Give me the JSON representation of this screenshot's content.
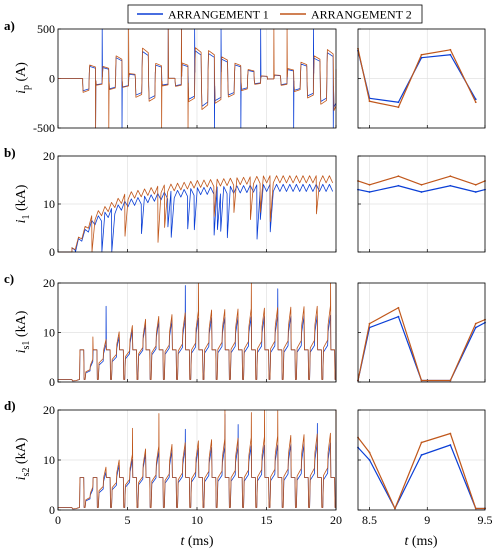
{
  "legend": {
    "items": [
      {
        "label": "ARRANGEMENT 1",
        "color": "#0b3fd6"
      },
      {
        "label": "ARRANGEMENT 2",
        "color": "#c0571b"
      }
    ]
  },
  "time_axis": {
    "xlabel_italic": "t",
    "xlabel_units": "(ms)",
    "main_ticks": [
      0,
      5,
      10,
      15,
      20
    ],
    "main_xlim": [
      0,
      20
    ],
    "zoom_ticks": [
      8.5,
      9,
      9.5
    ],
    "zoom_xlim": [
      8.4,
      9.5
    ]
  },
  "panels": [
    {
      "letter": "a)",
      "ylabel_base": "i",
      "ylabel_sub": "p",
      "ylabel_units": "(A)",
      "ylim": [
        -500,
        500
      ],
      "yticks": [
        -500,
        0,
        500
      ]
    },
    {
      "letter": "b)",
      "ylabel_base": "i",
      "ylabel_sub": "1",
      "ylabel_units": "(kA)",
      "ylim": [
        0,
        20
      ],
      "yticks": [
        0,
        10,
        20
      ]
    },
    {
      "letter": "c)",
      "ylabel_base": "i",
      "ylabel_sub": "s1",
      "ylabel_units": "(kA)",
      "ylim": [
        0,
        20
      ],
      "yticks": [
        0,
        10,
        20
      ]
    },
    {
      "letter": "d)",
      "ylabel_base": "i",
      "ylabel_sub": "s2",
      "ylabel_units": "(kA)",
      "ylim": [
        0,
        20
      ],
      "yticks": [
        0,
        10,
        20
      ]
    }
  ],
  "chart_data": [
    {
      "type": "line",
      "panel": "a)",
      "xlim": [
        0,
        20
      ],
      "ylim": [
        -500,
        500
      ],
      "series": [
        {
          "name": "ARRANGEMENT 1",
          "x": [
            0,
            1.3,
            1.8,
            2.3,
            3.0,
            4.0,
            6.0,
            10.0,
            20.0
          ],
          "y": [
            0,
            0,
            130,
            -150,
            200,
            -250,
            280,
            -300,
            300
          ]
        },
        {
          "name": "ARRANGEMENT 2",
          "x": [
            0,
            1.3,
            1.8,
            2.3,
            3.0,
            4.0,
            6.0,
            10.0,
            20.0
          ],
          "y": [
            0,
            0,
            140,
            -160,
            210,
            -260,
            300,
            -320,
            320
          ]
        }
      ]
    },
    {
      "type": "line",
      "panel": "b)",
      "xlim": [
        0,
        20
      ],
      "ylim": [
        0,
        20
      ],
      "series": [
        {
          "name": "ARRANGEMENT 1",
          "x": [
            0,
            1.0,
            2.5,
            5,
            7.5,
            10,
            12.5,
            15,
            20
          ],
          "y": [
            0,
            0,
            6,
            10,
            11.5,
            12.5,
            12.8,
            13.2,
            13.2
          ]
        },
        {
          "name": "ARRANGEMENT 2",
          "x": [
            0,
            1.0,
            2.5,
            5,
            7.5,
            10,
            12.5,
            15,
            20
          ],
          "y": [
            0,
            0,
            7,
            11.5,
            13,
            14,
            14.5,
            15,
            15
          ]
        }
      ]
    },
    {
      "type": "line",
      "panel": "c)",
      "xlim": [
        0,
        20
      ],
      "ylim": [
        0,
        20
      ],
      "series": [
        {
          "name": "ARRANGEMENT 1",
          "x": [
            0,
            1.0,
            3,
            6,
            10,
            20
          ],
          "y": [
            0.5,
            0.5,
            8,
            12,
            13,
            13.5
          ]
        },
        {
          "name": "ARRANGEMENT 2",
          "x": [
            0,
            1.0,
            3,
            6,
            10,
            20
          ],
          "y": [
            0.5,
            0.5,
            9,
            13,
            14.5,
            15.5
          ]
        }
      ]
    },
    {
      "type": "line",
      "panel": "d)",
      "xlim": [
        0,
        20
      ],
      "ylim": [
        0,
        20
      ],
      "series": [
        {
          "name": "ARRANGEMENT 1",
          "x": [
            0,
            1.0,
            3,
            6,
            10,
            20
          ],
          "y": [
            0.5,
            0.5,
            8,
            11.5,
            12.5,
            13.5
          ]
        },
        {
          "name": "ARRANGEMENT 2",
          "x": [
            0,
            1.0,
            3,
            6,
            10,
            20
          ],
          "y": [
            0.5,
            0.5,
            9,
            12.5,
            14,
            15.5
          ]
        }
      ]
    },
    {
      "type": "line",
      "panel": "a) zoom",
      "xlim": [
        8.4,
        9.5
      ],
      "ylim": [
        -500,
        500
      ],
      "series": [
        {
          "name": "ARRANGEMENT 1",
          "x": [
            8.4,
            8.5,
            8.75,
            8.95,
            9.2,
            9.42
          ],
          "y": [
            280,
            -200,
            -240,
            210,
            240,
            -210
          ]
        },
        {
          "name": "ARRANGEMENT 2",
          "x": [
            8.4,
            8.5,
            8.75,
            8.95,
            9.2,
            9.42
          ],
          "y": [
            300,
            -230,
            -290,
            240,
            290,
            -240
          ]
        }
      ]
    },
    {
      "type": "line",
      "panel": "b) zoom",
      "xlim": [
        8.4,
        9.5
      ],
      "ylim": [
        0,
        20
      ],
      "series": [
        {
          "name": "ARRANGEMENT 1",
          "x": [
            8.4,
            8.5,
            8.75,
            8.95,
            9.2,
            9.42,
            9.5
          ],
          "y": [
            13.0,
            12.5,
            13.8,
            12.5,
            13.8,
            12.5,
            13.0
          ]
        },
        {
          "name": "ARRANGEMENT 2",
          "x": [
            8.4,
            8.5,
            8.75,
            8.95,
            9.2,
            9.42,
            9.5
          ],
          "y": [
            14.8,
            14.0,
            15.8,
            14.0,
            15.8,
            14.0,
            14.8
          ]
        }
      ]
    },
    {
      "type": "line",
      "panel": "c) zoom",
      "xlim": [
        8.4,
        9.5
      ],
      "ylim": [
        0,
        20
      ],
      "series": [
        {
          "name": "ARRANGEMENT 1",
          "x": [
            8.4,
            8.5,
            8.75,
            8.95,
            9.2,
            9.42,
            9.5
          ],
          "y": [
            0.3,
            11.0,
            13.2,
            0.3,
            0.3,
            11.0,
            12.0
          ]
        },
        {
          "name": "ARRANGEMENT 2",
          "x": [
            8.4,
            8.5,
            8.75,
            8.95,
            9.2,
            9.42,
            9.5
          ],
          "y": [
            0.3,
            11.8,
            15.0,
            0.3,
            0.3,
            11.8,
            12.6
          ]
        }
      ]
    },
    {
      "type": "line",
      "panel": "d) zoom",
      "xlim": [
        8.4,
        9.5
      ],
      "ylim": [
        0,
        20
      ],
      "series": [
        {
          "name": "ARRANGEMENT 1",
          "x": [
            8.4,
            8.5,
            8.72,
            8.95,
            9.2,
            9.42,
            9.5
          ],
          "y": [
            12.5,
            10.0,
            0.3,
            11.0,
            13.0,
            0.3,
            0.3
          ]
        },
        {
          "name": "ARRANGEMENT 2",
          "x": [
            8.4,
            8.5,
            8.72,
            8.95,
            9.2,
            9.42,
            9.5
          ],
          "y": [
            14.5,
            11.5,
            0.3,
            13.5,
            15.3,
            0.3,
            0.3
          ]
        }
      ]
    }
  ]
}
